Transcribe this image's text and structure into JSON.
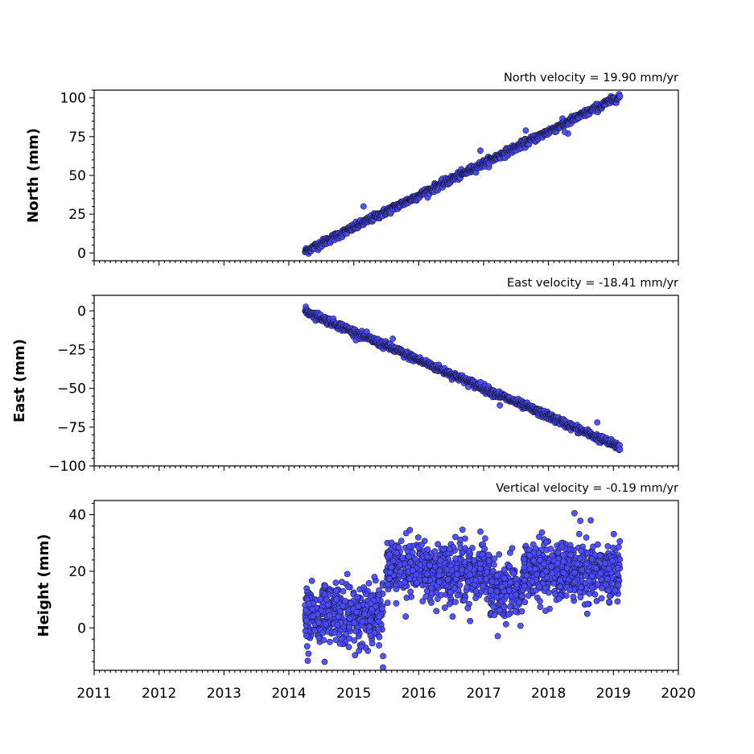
{
  "chart_data": [
    {
      "type": "scatter",
      "title": "North velocity = 19.90 mm/yr",
      "ylabel": "North (mm)",
      "xlim": [
        2011,
        2020
      ],
      "ylim": [
        -5,
        105
      ],
      "yticks": [
        0,
        25,
        50,
        75,
        100
      ],
      "yticklabels": [
        "0",
        "25",
        "50",
        "75",
        "100"
      ],
      "marker_color": "#4b4bff",
      "trend": {
        "x_start": 2014.25,
        "x_end": 2019.1,
        "y_start": 1,
        "y_end": 101,
        "noise": 2.0
      },
      "outliers": [
        [
          2015.15,
          30
        ],
        [
          2018.3,
          77
        ],
        [
          2018.25,
          78
        ],
        [
          2017.65,
          79
        ],
        [
          2016.95,
          66
        ]
      ]
    },
    {
      "type": "scatter",
      "title": "East velocity = -18.41 mm/yr",
      "ylabel": "East (mm)",
      "xlim": [
        2011,
        2020
      ],
      "ylim": [
        -100,
        10
      ],
      "yticks": [
        0,
        -25,
        -50,
        -75,
        -100
      ],
      "yticklabels": [
        "0",
        "−25",
        "−50",
        "−75",
        "−100"
      ],
      "marker_color": "#4b4bff",
      "trend": {
        "x_start": 2014.25,
        "x_end": 2019.1,
        "y_start": 0,
        "y_end": -88,
        "noise": 2.0
      },
      "outliers": [
        [
          2018.75,
          -72
        ],
        [
          2015.6,
          -18
        ],
        [
          2017.25,
          -61
        ],
        [
          2016.95,
          -46
        ]
      ]
    },
    {
      "type": "scatter",
      "title": "Vertical velocity = -0.19 mm/yr",
      "ylabel": "Height (mm)",
      "xlim": [
        2011,
        2020
      ],
      "ylim": [
        -15,
        45
      ],
      "yticks": [
        0,
        20,
        40
      ],
      "yticklabels": [
        "0",
        "20",
        "40"
      ],
      "marker_color": "#4b4bff",
      "segments": [
        {
          "x_start": 2014.25,
          "x_end": 2015.45,
          "mean": 5,
          "spread": 5
        },
        {
          "x_start": 2015.5,
          "x_end": 2016.1,
          "mean": 21,
          "spread": 5
        },
        {
          "x_start": 2016.1,
          "x_end": 2017.1,
          "mean": 19,
          "spread": 5
        },
        {
          "x_start": 2017.1,
          "x_end": 2017.6,
          "mean": 14,
          "spread": 5
        },
        {
          "x_start": 2017.6,
          "x_end": 2019.1,
          "mean": 20,
          "spread": 5
        }
      ],
      "outliers": [
        [
          2018.4,
          40.5
        ],
        [
          2018.65,
          38
        ],
        [
          2016.95,
          34
        ],
        [
          2014.55,
          -12
        ],
        [
          2015.45,
          -14
        ],
        [
          2015.45,
          -10
        ],
        [
          2014.9,
          19
        ],
        [
          2015.8,
          4
        ]
      ]
    }
  ],
  "xaxis": {
    "ticks": [
      2011,
      2012,
      2013,
      2014,
      2015,
      2016,
      2017,
      2018,
      2019,
      2020
    ],
    "ticklabels": [
      "2011",
      "2012",
      "2013",
      "2014",
      "2015",
      "2016",
      "2017",
      "2018",
      "2019",
      "2020"
    ]
  }
}
